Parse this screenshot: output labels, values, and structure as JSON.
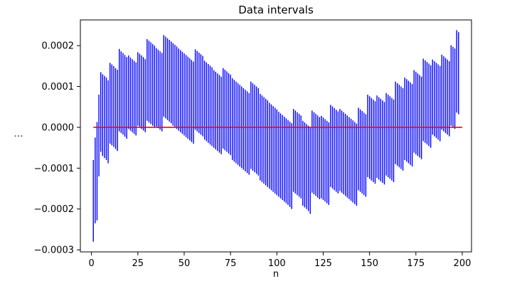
{
  "chart_data": {
    "type": "interval",
    "title": "Data intervals",
    "xlabel": "n",
    "ylabel": "⋮",
    "xlim": [
      -6,
      205
    ],
    "ylim": [
      -0.000305,
      0.000263
    ],
    "x_ticks": [
      0,
      25,
      50,
      75,
      100,
      125,
      150,
      175,
      200
    ],
    "x_tick_labels": [
      "0",
      "25",
      "50",
      "75",
      "100",
      "125",
      "150",
      "175",
      "200"
    ],
    "y_ticks": [
      -0.0003,
      -0.0002,
      -0.0001,
      0.0,
      0.0001,
      0.0002
    ],
    "y_tick_labels": [
      "−0.0003",
      "−0.0002",
      "−0.0001",
      "0.0000",
      "0.0001",
      "0.0002"
    ],
    "grid": false,
    "interval_color": "#0000ff",
    "reference_color": "#ff0000",
    "reference_line": {
      "y": 0.0,
      "x_start": 1,
      "x_end": 200
    },
    "n_start": 1,
    "interval_bounds": [
      [
        -0.00028,
        -8e-05
      ],
      [
        -0.000235,
        -2.5e-05
      ],
      [
        -0.000228,
        1.3e-05
      ],
      [
        -0.00012,
        8e-05
      ],
      [
        -6e-05,
        0.000135
      ],
      [
        -7e-05,
        0.00013
      ],
      [
        -7.5e-05,
        0.000126
      ],
      [
        -8e-05,
        0.000122
      ],
      [
        -8.8e-05,
        0.000115
      ],
      [
        -4e-05,
        0.000158
      ],
      [
        -4.4e-05,
        0.000154
      ],
      [
        -4.8e-05,
        0.00015
      ],
      [
        -5.3e-05,
        0.000145
      ],
      [
        -5.8e-05,
        0.000141
      ],
      [
        -1e-05,
        0.000192
      ],
      [
        -1.4e-05,
        0.000186
      ],
      [
        -1.8e-05,
        0.000182
      ],
      [
        -2.3e-05,
        0.000177
      ],
      [
        -2.8e-05,
        0.000172
      ],
      [
        -4e-06,
        0.000176
      ],
      [
        -8e-06,
        0.000171
      ],
      [
        -1.2e-05,
        0.000167
      ],
      [
        -1.6e-05,
        0.000163
      ],
      [
        -2e-05,
        0.000159
      ],
      [
        4e-06,
        0.000184
      ],
      [
        0.0,
        0.00018
      ],
      [
        -4e-06,
        0.000176
      ],
      [
        -8e-06,
        0.000172
      ],
      [
        -1.2e-05,
        0.000167
      ],
      [
        1.6e-05,
        0.000216
      ],
      [
        1.2e-05,
        0.000212
      ],
      [
        8e-06,
        0.000208
      ],
      [
        4e-06,
        0.000204
      ],
      [
        0.0,
        0.0002
      ],
      [
        2e-06,
        0.000194
      ],
      [
        -2e-06,
        0.00019
      ],
      [
        -6e-06,
        0.000186
      ],
      [
        -1e-05,
        0.000182
      ],
      [
        2.6e-05,
        0.000226
      ],
      [
        2.2e-05,
        0.000222
      ],
      [
        1.8e-05,
        0.000218
      ],
      [
        1.4e-05,
        0.000214
      ],
      [
        1e-05,
        0.00021
      ],
      [
        4e-06,
        0.000206
      ],
      [
        0.0,
        0.000202
      ],
      [
        -4e-06,
        0.000198
      ],
      [
        -8e-06,
        0.000193
      ],
      [
        -1.2e-05,
        0.000189
      ],
      [
        -1.6e-05,
        0.000185
      ],
      [
        -2e-05,
        0.000181
      ],
      [
        -2.4e-05,
        0.000177
      ],
      [
        -2.8e-05,
        0.000173
      ],
      [
        -3.2e-05,
        0.000169
      ],
      [
        -3.6e-05,
        0.000165
      ],
      [
        -4e-05,
        0.000161
      ],
      [
        -6e-06,
        0.000191
      ],
      [
        -1e-05,
        0.000187
      ],
      [
        -1.4e-05,
        0.000183
      ],
      [
        -1.8e-05,
        0.000179
      ],
      [
        -2.2e-05,
        0.000175
      ],
      [
        -3e-05,
        0.000163
      ],
      [
        -3.4e-05,
        0.000159
      ],
      [
        -3.8e-05,
        0.000155
      ],
      [
        -4.2e-05,
        0.000151
      ],
      [
        -4.6e-05,
        0.000147
      ],
      [
        -5e-05,
        0.00014
      ],
      [
        -5.4e-05,
        0.000136
      ],
      [
        -5.8e-05,
        0.000132
      ],
      [
        -6.2e-05,
        0.000128
      ],
      [
        -6.6e-05,
        0.000124
      ],
      [
        -5.2e-05,
        0.000145
      ],
      [
        -5.6e-05,
        0.000141
      ],
      [
        -6e-05,
        0.000137
      ],
      [
        -6.4e-05,
        0.000133
      ],
      [
        -6.8e-05,
        0.000129
      ],
      [
        -8e-05,
        0.00012
      ],
      [
        -8.4e-05,
        0.000116
      ],
      [
        -8.8e-05,
        0.000112
      ],
      [
        -9.2e-05,
        0.000108
      ],
      [
        -9.6e-05,
        0.000104
      ],
      [
        -0.0001,
        0.0001
      ],
      [
        -0.000104,
        9.6e-05
      ],
      [
        -0.000108,
        9.2e-05
      ],
      [
        -0.000112,
        8.8e-05
      ],
      [
        -0.000116,
        8.4e-05
      ],
      [
        -0.000102,
        0.000112
      ],
      [
        -0.000106,
        0.000108
      ],
      [
        -0.00011,
        0.000104
      ],
      [
        -0.000114,
        0.0001
      ],
      [
        -0.000118,
        9.6e-05
      ],
      [
        -0.00013,
        8.2e-05
      ],
      [
        -0.000134,
        7.8e-05
      ],
      [
        -0.000138,
        7.4e-05
      ],
      [
        -0.000142,
        7e-05
      ],
      [
        -0.000146,
        6.6e-05
      ],
      [
        -0.00015,
        6e-05
      ],
      [
        -0.000154,
        5.6e-05
      ],
      [
        -0.000158,
        5.2e-05
      ],
      [
        -0.000162,
        4.8e-05
      ],
      [
        -0.000166,
        4.4e-05
      ],
      [
        -0.00017,
        3.8e-05
      ],
      [
        -0.000174,
        3.4e-05
      ],
      [
        -0.000178,
        3e-05
      ],
      [
        -0.000182,
        2.6e-05
      ],
      [
        -0.000186,
        2.2e-05
      ],
      [
        -0.00019,
        1.8e-05
      ],
      [
        -0.000195,
        1.4e-05
      ],
      [
        -0.0002,
        1e-05
      ],
      [
        -0.000158,
        4.5e-05
      ],
      [
        -0.000162,
        4.1e-05
      ],
      [
        -0.000166,
        3.7e-05
      ],
      [
        -0.00017,
        3.3e-05
      ],
      [
        -0.000174,
        2.9e-05
      ],
      [
        -0.000192,
        1.6e-05
      ],
      [
        -0.000196,
        1.2e-05
      ],
      [
        -0.0002,
        8e-06
      ],
      [
        -0.000205,
        4e-06
      ],
      [
        -0.000212,
        0.0
      ],
      [
        -0.00016,
        4.1e-05
      ],
      [
        -0.000164,
        3.7e-05
      ],
      [
        -0.000168,
        3.3e-05
      ],
      [
        -0.000172,
        2.9e-05
      ],
      [
        -0.000176,
        2.5e-05
      ],
      [
        -0.000174,
        2.8e-05
      ],
      [
        -0.000178,
        2.4e-05
      ],
      [
        -0.000182,
        2e-05
      ],
      [
        -0.000186,
        1.6e-05
      ],
      [
        -0.00019,
        1.2e-05
      ],
      [
        -0.000146,
        5.5e-05
      ],
      [
        -0.00015,
        5.1e-05
      ],
      [
        -0.000154,
        4.7e-05
      ],
      [
        -0.000158,
        4.3e-05
      ],
      [
        -0.000162,
        3.9e-05
      ],
      [
        -0.000156,
        4.5e-05
      ],
      [
        -0.00016,
        4.1e-05
      ],
      [
        -0.000164,
        3.7e-05
      ],
      [
        -0.000168,
        3.3e-05
      ],
      [
        -0.000172,
        2.9e-05
      ],
      [
        -0.000176,
        2.5e-05
      ],
      [
        -0.00018,
        2.1e-05
      ],
      [
        -0.000184,
        1.7e-05
      ],
      [
        -0.000188,
        1.3e-05
      ],
      [
        -0.000192,
        9e-06
      ],
      [
        -0.000154,
        4.8e-05
      ],
      [
        -0.000158,
        4.4e-05
      ],
      [
        -0.000162,
        4e-05
      ],
      [
        -0.000166,
        3.6e-05
      ],
      [
        -0.00017,
        3.2e-05
      ],
      [
        -0.000122,
        8e-05
      ],
      [
        -0.000126,
        7.6e-05
      ],
      [
        -0.00013,
        7.2e-05
      ],
      [
        -0.000134,
        6.8e-05
      ],
      [
        -0.000138,
        6.4e-05
      ],
      [
        -0.000124,
        7.8e-05
      ],
      [
        -0.000128,
        7.4e-05
      ],
      [
        -0.000132,
        7e-05
      ],
      [
        -0.000136,
        6.6e-05
      ],
      [
        -0.00014,
        6.2e-05
      ],
      [
        -0.000118,
        8.4e-05
      ],
      [
        -0.000122,
        8e-05
      ],
      [
        -0.000126,
        7.6e-05
      ],
      [
        -0.00013,
        7.2e-05
      ],
      [
        -0.000134,
        6.8e-05
      ],
      [
        -9e-05,
        0.000112
      ],
      [
        -9.4e-05,
        0.000108
      ],
      [
        -9.8e-05,
        0.000104
      ],
      [
        -0.000102,
        0.0001
      ],
      [
        -0.000106,
        9.6e-05
      ],
      [
        -8e-05,
        0.000122
      ],
      [
        -8.4e-05,
        0.000118
      ],
      [
        -8.8e-05,
        0.000114
      ],
      [
        -9.2e-05,
        0.00011
      ],
      [
        -9.6e-05,
        0.000106
      ],
      [
        -6.2e-05,
        0.00014
      ],
      [
        -6.6e-05,
        0.000136
      ],
      [
        -7e-05,
        0.000132
      ],
      [
        -7.4e-05,
        0.000128
      ],
      [
        -7.8e-05,
        0.000124
      ],
      [
        -3.4e-05,
        0.000168
      ],
      [
        -3.8e-05,
        0.000164
      ],
      [
        -4.2e-05,
        0.00016
      ],
      [
        -4.6e-05,
        0.000156
      ],
      [
        -5e-05,
        0.000152
      ],
      [
        -1.8e-05,
        0.000166
      ],
      [
        -2.2e-05,
        0.000162
      ],
      [
        -2.6e-05,
        0.000158
      ],
      [
        -3e-05,
        0.000154
      ],
      [
        -3.4e-05,
        0.00015
      ],
      [
        -6e-06,
        0.000178
      ],
      [
        -1e-05,
        0.000174
      ],
      [
        -1.4e-05,
        0.00017
      ],
      [
        -1.8e-05,
        0.000166
      ],
      [
        -2.2e-05,
        0.000162
      ],
      [
        4e-06,
        0.000201
      ],
      [
        0.0,
        0.000197
      ],
      [
        -4e-06,
        0.000193
      ],
      [
        3.6e-05,
        0.000238
      ],
      [
        3.2e-05,
        0.000233
      ]
    ]
  }
}
